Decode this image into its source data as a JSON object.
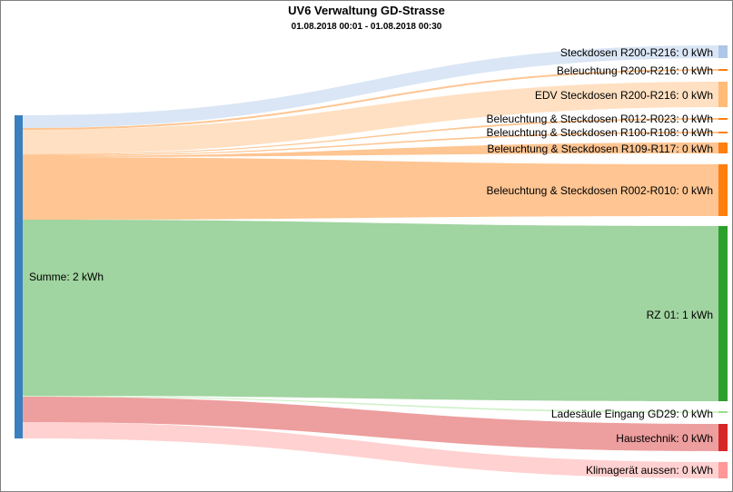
{
  "chart_data": {
    "type": "sankey",
    "title": "UV6 Verwaltung GD-Strasse",
    "subtitle": "01.08.2018 00:01 - 01.08.2018 00:30",
    "unit": "kWh",
    "source": {
      "label": "Summe: 2 kWh",
      "name": "Summe",
      "value": 2,
      "color": "#3a7fbf"
    },
    "targets": [
      {
        "label": "Steckdosen R200-R216: 0 kWh",
        "name": "Steckdosen R200-R216",
        "value": 0,
        "color": "#aec7e8"
      },
      {
        "label": "Beleuchtung R200-R216: 0 kWh",
        "name": "Beleuchtung R200-R216",
        "value": 0,
        "color": "#ff7f0e"
      },
      {
        "label": "EDV Steckdosen R200-R216: 0 kWh",
        "name": "EDV Steckdosen R200-R216",
        "value": 0,
        "color": "#ffbb78"
      },
      {
        "label": "Beleuchtung & Steckdosen R012-R023: 0 kWh",
        "name": "Beleuchtung & Steckdosen R012-R023",
        "value": 0,
        "color": "#ff7f0e"
      },
      {
        "label": "Beleuchtung & Steckdosen R100-R108: 0 kWh",
        "name": "Beleuchtung & Steckdosen R100-R108",
        "value": 0,
        "color": "#ff7f0e"
      },
      {
        "label": "Beleuchtung & Steckdosen R109-R117: 0 kWh",
        "name": "Beleuchtung & Steckdosen R109-R117",
        "value": 0,
        "color": "#ff7f0e"
      },
      {
        "label": "Beleuchtung & Steckdosen R002-R010: 0 kWh",
        "name": "Beleuchtung & Steckdosen R002-R010",
        "value": 0,
        "color": "#ff7f0e"
      },
      {
        "label": "RZ 01: 1 kWh",
        "name": "RZ 01",
        "value": 1,
        "color": "#2ca02c"
      },
      {
        "label": "Ladesäule Eingang GD29: 0 kWh",
        "name": "Ladesäule Eingang GD29",
        "value": 0,
        "color": "#98df8a"
      },
      {
        "label": "Haustechnik: 0 kWh",
        "name": "Haustechnik",
        "value": 0,
        "color": "#d62728"
      },
      {
        "label": "Klimagerät aussen: 0 kWh",
        "name": "Klimagerät aussen",
        "value": 0,
        "color": "#ff9896"
      }
    ]
  }
}
